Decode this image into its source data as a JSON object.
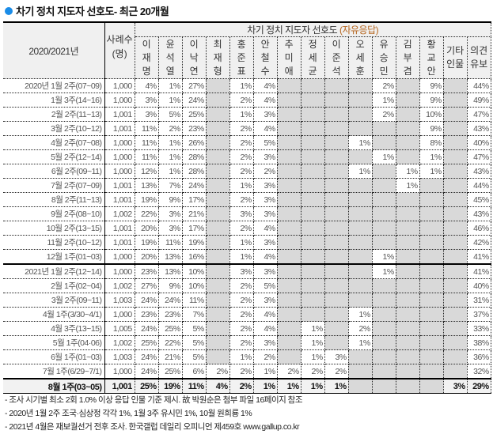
{
  "title": "차기 정치 지도자 선호도- 최근 20개월",
  "accent_color": "#1a8ce8",
  "header": {
    "period_label": "2020/2021년",
    "sample_label": "사례수(명)",
    "group_label": "차기 정치 지도자 선호도",
    "group_sub": "(자유응답)",
    "columns": [
      "이재명",
      "윤석열",
      "이낙연",
      "최재형",
      "홍준표",
      "안철수",
      "추미애",
      "정세균",
      "이준석",
      "오세훈",
      "유승민",
      "김부겸",
      "황교안",
      "기타인물",
      "의견유보"
    ]
  },
  "rows": [
    {
      "label": "2020년 1월 2주(07~09)",
      "n": "1,000",
      "v": [
        "4%",
        "1%",
        "27%",
        null,
        "1%",
        "4%",
        null,
        null,
        null,
        null,
        "2%",
        null,
        "9%",
        null,
        "44%"
      ]
    },
    {
      "label": "1월 3주(14~16)",
      "n": "1,000",
      "v": [
        "3%",
        "1%",
        "24%",
        null,
        "2%",
        "4%",
        null,
        null,
        null,
        null,
        "1%",
        null,
        "9%",
        null,
        "49%"
      ]
    },
    {
      "label": "2월 2주(11~13)",
      "n": "1,001",
      "v": [
        "3%",
        "5%",
        "25%",
        null,
        "1%",
        "3%",
        null,
        null,
        null,
        null,
        "2%",
        null,
        "10%",
        null,
        "47%"
      ]
    },
    {
      "label": "3월 2주(10~12)",
      "n": "1,001",
      "v": [
        "11%",
        "2%",
        "23%",
        null,
        "2%",
        "4%",
        null,
        null,
        null,
        null,
        null,
        null,
        "9%",
        null,
        "43%"
      ]
    },
    {
      "label": "4월 2주(07~08)",
      "n": "1,000",
      "v": [
        "11%",
        "1%",
        "26%",
        null,
        "2%",
        "5%",
        null,
        null,
        null,
        "1%",
        null,
        null,
        "8%",
        null,
        "40%"
      ]
    },
    {
      "label": "5월 2주(12~14)",
      "n": "1,000",
      "v": [
        "11%",
        "1%",
        "28%",
        null,
        "2%",
        "3%",
        null,
        null,
        null,
        null,
        "1%",
        null,
        "1%",
        null,
        "47%"
      ]
    },
    {
      "label": "6월 2주(09~11)",
      "n": "1,000",
      "v": [
        "12%",
        "1%",
        "28%",
        null,
        "2%",
        "2%",
        null,
        null,
        null,
        "1%",
        null,
        "1%",
        "1%",
        null,
        "43%"
      ]
    },
    {
      "label": "7월 2주(07~09)",
      "n": "1,001",
      "v": [
        "13%",
        "7%",
        "24%",
        null,
        "1%",
        "3%",
        null,
        null,
        null,
        null,
        null,
        "1%",
        null,
        null,
        "44%"
      ]
    },
    {
      "label": "8월 2주(11~13)",
      "n": "1,001",
      "v": [
        "19%",
        "9%",
        "17%",
        null,
        "2%",
        "3%",
        null,
        null,
        null,
        null,
        null,
        null,
        null,
        null,
        "45%"
      ]
    },
    {
      "label": "9월 2주(08~10)",
      "n": "1,002",
      "v": [
        "22%",
        "3%",
        "21%",
        null,
        "3%",
        "3%",
        null,
        null,
        null,
        null,
        null,
        null,
        null,
        null,
        "43%"
      ]
    },
    {
      "label": "10월 2주(13~15)",
      "n": "1,001",
      "v": [
        "20%",
        "3%",
        "17%",
        null,
        "2%",
        "4%",
        null,
        null,
        null,
        null,
        null,
        null,
        null,
        null,
        "46%"
      ]
    },
    {
      "label": "11월 2주(10~12)",
      "n": "1,001",
      "v": [
        "19%",
        "11%",
        "19%",
        null,
        "1%",
        "3%",
        null,
        null,
        null,
        null,
        null,
        null,
        null,
        null,
        "42%"
      ]
    },
    {
      "label": "12월 1주(01~03)",
      "n": "1,000",
      "v": [
        "20%",
        "13%",
        "16%",
        null,
        "1%",
        "4%",
        null,
        null,
        null,
        null,
        "1%",
        null,
        null,
        null,
        "41%"
      ]
    },
    {
      "label": "2021년 1월 2주(12~14)",
      "n": "1,000",
      "v": [
        "23%",
        "13%",
        "10%",
        null,
        "3%",
        "3%",
        null,
        null,
        null,
        null,
        "1%",
        null,
        null,
        null,
        "41%"
      ]
    },
    {
      "label": "2월 1주(02~04)",
      "n": "1,002",
      "v": [
        "27%",
        "9%",
        "10%",
        null,
        "2%",
        "5%",
        null,
        null,
        null,
        null,
        null,
        null,
        null,
        null,
        "40%"
      ]
    },
    {
      "label": "3월 2주(09~11)",
      "n": "1,003",
      "v": [
        "24%",
        "24%",
        "11%",
        null,
        "2%",
        "3%",
        null,
        null,
        null,
        null,
        null,
        null,
        null,
        null,
        "31%"
      ]
    },
    {
      "label": "4월 1주(3/30~4/1)",
      "n": "1,000",
      "v": [
        "23%",
        "23%",
        "7%",
        null,
        "2%",
        "4%",
        null,
        null,
        null,
        "1%",
        null,
        null,
        null,
        null,
        "37%"
      ]
    },
    {
      "label": "4월 3주(13~15)",
      "n": "1,005",
      "v": [
        "24%",
        "25%",
        "5%",
        null,
        "2%",
        "4%",
        null,
        "1%",
        null,
        "2%",
        null,
        null,
        null,
        null,
        "33%"
      ]
    },
    {
      "label": "5월 1주(04·06)",
      "n": "1,002",
      "v": [
        "25%",
        "22%",
        "5%",
        null,
        "2%",
        "3%",
        null,
        "1%",
        null,
        "1%",
        null,
        null,
        null,
        null,
        "38%"
      ]
    },
    {
      "label": "6월 1주(01~03)",
      "n": "1,003",
      "v": [
        "24%",
        "21%",
        "5%",
        null,
        "1%",
        "2%",
        null,
        "1%",
        "3%",
        null,
        null,
        null,
        null,
        null,
        "36%"
      ]
    },
    {
      "label": "7월 1주(6/29~7/1)",
      "n": "1,000",
      "v": [
        "24%",
        "25%",
        "6%",
        "2%",
        "2%",
        "1%",
        "2%",
        "2%",
        "2%",
        null,
        null,
        null,
        null,
        null,
        "32%"
      ]
    },
    {
      "label": "8월 1주(03~05)",
      "n": "1,001",
      "v": [
        "25%",
        "19%",
        "11%",
        "4%",
        "2%",
        "1%",
        "1%",
        "1%",
        "1%",
        null,
        null,
        null,
        null,
        "3%",
        "29%"
      ]
    }
  ],
  "notes": [
    "- 조사 시기별 최소 2회 1.0% 이상 응답 인물 기준 제시. 故 박원순은 첨부 파일 16페이지 참조",
    "- 2020년 1월 2주 조국·심상정 각각 1%, 1월 3주 유시민 1%, 10월 원희룡 1%",
    "- 2021년 4월은 재보궐선거 전후 조사. 한국갤럽 데일리 오피니언 제459호 www.gallup.co.kr"
  ]
}
